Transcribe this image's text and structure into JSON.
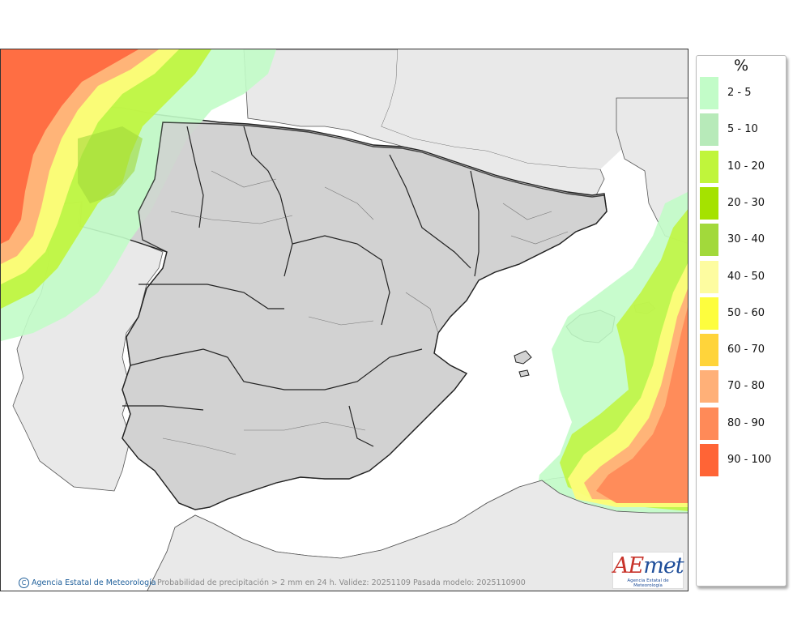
{
  "legend": {
    "title": "%",
    "items": [
      {
        "label": "2 - 5",
        "color": "#c2fcc8"
      },
      {
        "label": "5 - 10",
        "color": "#b7eab9"
      },
      {
        "label": "10 - 20",
        "color": "#c0f53b"
      },
      {
        "label": "20 - 30",
        "color": "#a5e200"
      },
      {
        "label": "30 - 40",
        "color": "#a2d93b"
      },
      {
        "label": "40 - 50",
        "color": "#fdfca0"
      },
      {
        "label": "50 - 60",
        "color": "#fdfd3e"
      },
      {
        "label": "60 - 70",
        "color": "#ffd43a"
      },
      {
        "label": "70 - 80",
        "color": "#ffb078"
      },
      {
        "label": "80 - 90",
        "color": "#ff8a58"
      },
      {
        "label": "90 - 100",
        "color": "#ff6436"
      }
    ]
  },
  "map": {
    "colors": {
      "land": "#d2d2d2",
      "land_border": "#222222",
      "foreign_land": "#e9e9e9",
      "sea": "#ffffff"
    }
  },
  "footer": {
    "copyright_symbol": "C",
    "agency": "Agencia Estatal de Meteorología",
    "caption": "Probabilidad de precipitación > 2 mm en 24 h. Validez: 20251109 Pasada modelo: 2025110900"
  },
  "logo": {
    "brand_a": "AE",
    "brand_b": "met",
    "subtitle": "Agencia Estatal de Meteorología"
  }
}
